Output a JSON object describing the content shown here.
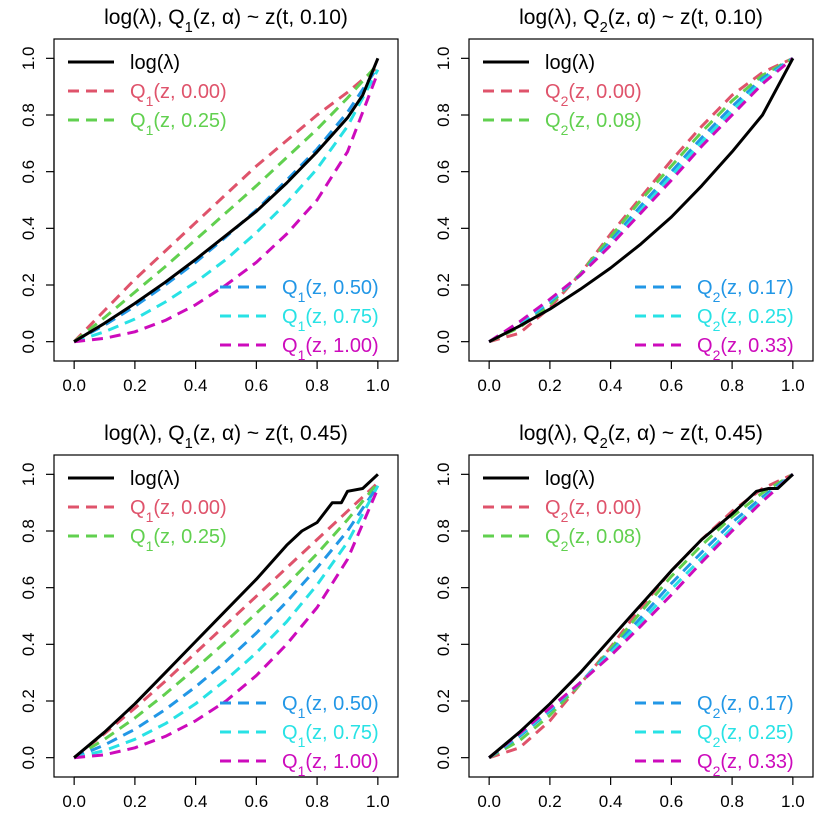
{
  "colors": {
    "black": "#000000",
    "red": "#DF536B",
    "green": "#61D04F",
    "blue": "#2297E6",
    "cyan": "#28E2E5",
    "magenta": "#CD0BBC"
  },
  "chart_data": [
    {
      "type": "line",
      "title": "log(λ), Q1(z, α) ~ z(t, 0.10)",
      "title_parts": {
        "pre": "log(λ), Q",
        "sub": "1",
        "post": "(z, α) ~ z(t, 0.10)"
      },
      "xlim": [
        0,
        1
      ],
      "ylim": [
        0,
        1
      ],
      "x_ticks": [
        "0.0",
        "0.2",
        "0.4",
        "0.6",
        "0.8",
        "1.0"
      ],
      "y_ticks": [
        "0.0",
        "0.2",
        "0.4",
        "0.6",
        "0.8",
        "1.0"
      ],
      "legend_top": [
        {
          "label": "log(λ)",
          "color": "black",
          "style": "solid"
        },
        {
          "label": "Q1(z, 0.00)",
          "pre": "Q",
          "sub": "1",
          "post": "(z, 0.00)",
          "color": "red",
          "style": "dashed"
        },
        {
          "label": "Q1(z, 0.25)",
          "pre": "Q",
          "sub": "1",
          "post": "(z, 0.25)",
          "color": "green",
          "style": "dashed"
        }
      ],
      "legend_bottom": [
        {
          "label": "Q1(z, 0.50)",
          "pre": "Q",
          "sub": "1",
          "post": "(z, 0.50)",
          "color": "blue",
          "style": "dashed"
        },
        {
          "label": "Q1(z, 0.75)",
          "pre": "Q",
          "sub": "1",
          "post": "(z, 0.75)",
          "color": "cyan",
          "style": "dashed"
        },
        {
          "label": "Q1(z, 1.00)",
          "pre": "Q",
          "sub": "1",
          "post": "(z, 1.00)",
          "color": "magenta",
          "style": "dashed"
        }
      ],
      "series": [
        {
          "color": "black",
          "style": "solid",
          "x": [
            0,
            0.1,
            0.2,
            0.3,
            0.4,
            0.5,
            0.6,
            0.7,
            0.8,
            0.9,
            0.95,
            1.0
          ],
          "y": [
            0,
            0.065,
            0.135,
            0.21,
            0.29,
            0.375,
            0.46,
            0.56,
            0.67,
            0.79,
            0.87,
            1.0
          ]
        },
        {
          "color": "red",
          "style": "dashed",
          "x": [
            0,
            0.1,
            0.2,
            0.3,
            0.4,
            0.5,
            0.6,
            0.7,
            0.8,
            0.9,
            1.0
          ],
          "y": [
            0,
            0.11,
            0.22,
            0.32,
            0.42,
            0.52,
            0.62,
            0.71,
            0.8,
            0.88,
            0.97
          ]
        },
        {
          "color": "green",
          "style": "dashed",
          "x": [
            0,
            0.1,
            0.2,
            0.3,
            0.4,
            0.5,
            0.6,
            0.7,
            0.8,
            0.9,
            1.0
          ],
          "y": [
            0,
            0.085,
            0.175,
            0.265,
            0.36,
            0.455,
            0.55,
            0.65,
            0.75,
            0.86,
            0.98
          ]
        },
        {
          "color": "blue",
          "style": "dashed",
          "x": [
            0,
            0.1,
            0.2,
            0.3,
            0.4,
            0.5,
            0.6,
            0.7,
            0.8,
            0.9,
            1.0
          ],
          "y": [
            0,
            0.058,
            0.125,
            0.2,
            0.28,
            0.37,
            0.465,
            0.57,
            0.68,
            0.81,
            0.97
          ]
        },
        {
          "color": "cyan",
          "style": "dashed",
          "x": [
            0,
            0.1,
            0.2,
            0.3,
            0.4,
            0.5,
            0.6,
            0.7,
            0.8,
            0.9,
            1.0
          ],
          "y": [
            0,
            0.035,
            0.08,
            0.14,
            0.21,
            0.29,
            0.385,
            0.49,
            0.61,
            0.76,
            0.96
          ]
        },
        {
          "color": "magenta",
          "style": "dashed",
          "x": [
            0,
            0.1,
            0.2,
            0.3,
            0.4,
            0.5,
            0.6,
            0.7,
            0.8,
            0.9,
            1.0
          ],
          "y": [
            0,
            0.012,
            0.035,
            0.075,
            0.13,
            0.2,
            0.28,
            0.38,
            0.5,
            0.67,
            0.95
          ]
        }
      ]
    },
    {
      "type": "line",
      "title": "log(λ), Q2(z, α) ~ z(t, 0.10)",
      "title_parts": {
        "pre": "log(λ), Q",
        "sub": "2",
        "post": "(z, α) ~ z(t, 0.10)"
      },
      "xlim": [
        0,
        1
      ],
      "ylim": [
        0,
        1
      ],
      "x_ticks": [
        "0.0",
        "0.2",
        "0.4",
        "0.6",
        "0.8",
        "1.0"
      ],
      "y_ticks": [
        "0.0",
        "0.2",
        "0.4",
        "0.6",
        "0.8",
        "1.0"
      ],
      "legend_top": [
        {
          "label": "log(λ)",
          "color": "black",
          "style": "solid"
        },
        {
          "label": "Q2(z, 0.00)",
          "pre": "Q",
          "sub": "2",
          "post": "(z, 0.00)",
          "color": "red",
          "style": "dashed"
        },
        {
          "label": "Q2(z, 0.08)",
          "pre": "Q",
          "sub": "2",
          "post": "(z, 0.08)",
          "color": "green",
          "style": "dashed"
        }
      ],
      "legend_bottom": [
        {
          "label": "Q2(z, 0.17)",
          "pre": "Q",
          "sub": "2",
          "post": "(z, 0.17)",
          "color": "blue",
          "style": "dashed"
        },
        {
          "label": "Q2(z, 0.25)",
          "pre": "Q",
          "sub": "2",
          "post": "(z, 0.25)",
          "color": "cyan",
          "style": "dashed"
        },
        {
          "label": "Q2(z, 0.33)",
          "pre": "Q",
          "sub": "2",
          "post": "(z, 0.33)",
          "color": "magenta",
          "style": "dashed"
        }
      ],
      "series": [
        {
          "color": "black",
          "style": "solid",
          "x": [
            0,
            0.1,
            0.2,
            0.3,
            0.4,
            0.5,
            0.6,
            0.7,
            0.8,
            0.9,
            0.95,
            1.0
          ],
          "y": [
            0,
            0.055,
            0.115,
            0.185,
            0.26,
            0.345,
            0.44,
            0.55,
            0.67,
            0.8,
            0.9,
            1.0
          ]
        },
        {
          "color": "red",
          "style": "dashed",
          "x": [
            0,
            0.1,
            0.2,
            0.3,
            0.4,
            0.5,
            0.6,
            0.7,
            0.8,
            0.9,
            1.0
          ],
          "y": [
            0,
            0.03,
            0.12,
            0.24,
            0.38,
            0.51,
            0.64,
            0.76,
            0.87,
            0.95,
            1.0
          ]
        },
        {
          "color": "green",
          "style": "dashed",
          "x": [
            0,
            0.1,
            0.2,
            0.3,
            0.4,
            0.5,
            0.6,
            0.7,
            0.8,
            0.9,
            1.0
          ],
          "y": [
            0,
            0.05,
            0.13,
            0.24,
            0.37,
            0.5,
            0.62,
            0.74,
            0.85,
            0.94,
            1.0
          ]
        },
        {
          "color": "blue",
          "style": "dashed",
          "x": [
            0,
            0.1,
            0.2,
            0.3,
            0.4,
            0.5,
            0.6,
            0.7,
            0.8,
            0.9,
            1.0
          ],
          "y": [
            0,
            0.06,
            0.14,
            0.235,
            0.355,
            0.48,
            0.6,
            0.72,
            0.83,
            0.93,
            1.0
          ]
        },
        {
          "color": "cyan",
          "style": "dashed",
          "x": [
            0,
            0.1,
            0.2,
            0.3,
            0.4,
            0.5,
            0.6,
            0.7,
            0.8,
            0.9,
            1.0
          ],
          "y": [
            0,
            0.065,
            0.145,
            0.235,
            0.345,
            0.465,
            0.585,
            0.705,
            0.815,
            0.92,
            1.0
          ]
        },
        {
          "color": "magenta",
          "style": "dashed",
          "x": [
            0,
            0.1,
            0.2,
            0.3,
            0.4,
            0.5,
            0.6,
            0.7,
            0.8,
            0.9,
            1.0
          ],
          "y": [
            0,
            0.07,
            0.15,
            0.235,
            0.34,
            0.455,
            0.57,
            0.69,
            0.8,
            0.91,
            1.0
          ]
        }
      ]
    },
    {
      "type": "line",
      "title": "log(λ), Q1(z, α) ~ z(t, 0.45)",
      "title_parts": {
        "pre": "log(λ), Q",
        "sub": "1",
        "post": "(z, α) ~ z(t, 0.45)"
      },
      "xlim": [
        0,
        1
      ],
      "ylim": [
        0,
        1
      ],
      "x_ticks": [
        "0.0",
        "0.2",
        "0.4",
        "0.6",
        "0.8",
        "1.0"
      ],
      "y_ticks": [
        "0.0",
        "0.2",
        "0.4",
        "0.6",
        "0.8",
        "1.0"
      ],
      "legend_top": [
        {
          "label": "log(λ)",
          "color": "black",
          "style": "solid"
        },
        {
          "label": "Q1(z, 0.00)",
          "pre": "Q",
          "sub": "1",
          "post": "(z, 0.00)",
          "color": "red",
          "style": "dashed"
        },
        {
          "label": "Q1(z, 0.25)",
          "pre": "Q",
          "sub": "1",
          "post": "(z, 0.25)",
          "color": "green",
          "style": "dashed"
        }
      ],
      "legend_bottom": [
        {
          "label": "Q1(z, 0.50)",
          "pre": "Q",
          "sub": "1",
          "post": "(z, 0.50)",
          "color": "blue",
          "style": "dashed"
        },
        {
          "label": "Q1(z, 0.75)",
          "pre": "Q",
          "sub": "1",
          "post": "(z, 0.75)",
          "color": "cyan",
          "style": "dashed"
        },
        {
          "label": "Q1(z, 1.00)",
          "pre": "Q",
          "sub": "1",
          "post": "(z, 1.00)",
          "color": "magenta",
          "style": "dashed"
        }
      ],
      "series": [
        {
          "color": "black",
          "style": "solid",
          "x": [
            0,
            0.1,
            0.2,
            0.3,
            0.4,
            0.5,
            0.6,
            0.7,
            0.75,
            0.8,
            0.85,
            0.88,
            0.9,
            0.95,
            1.0
          ],
          "y": [
            0,
            0.09,
            0.19,
            0.3,
            0.41,
            0.52,
            0.63,
            0.75,
            0.8,
            0.83,
            0.9,
            0.9,
            0.94,
            0.95,
            1.0
          ]
        },
        {
          "color": "red",
          "style": "dashed",
          "x": [
            0,
            0.1,
            0.2,
            0.3,
            0.4,
            0.5,
            0.6,
            0.7,
            0.8,
            0.9,
            1.0
          ],
          "y": [
            0,
            0.085,
            0.175,
            0.27,
            0.37,
            0.47,
            0.57,
            0.67,
            0.77,
            0.87,
            0.97
          ]
        },
        {
          "color": "green",
          "style": "dashed",
          "x": [
            0,
            0.1,
            0.2,
            0.3,
            0.4,
            0.5,
            0.6,
            0.7,
            0.8,
            0.9,
            1.0
          ],
          "y": [
            0,
            0.065,
            0.14,
            0.225,
            0.315,
            0.41,
            0.51,
            0.61,
            0.72,
            0.84,
            0.97
          ]
        },
        {
          "color": "blue",
          "style": "dashed",
          "x": [
            0,
            0.1,
            0.2,
            0.3,
            0.4,
            0.5,
            0.6,
            0.7,
            0.8,
            0.9,
            1.0
          ],
          "y": [
            0,
            0.045,
            0.1,
            0.17,
            0.25,
            0.34,
            0.44,
            0.55,
            0.67,
            0.8,
            0.96
          ]
        },
        {
          "color": "cyan",
          "style": "dashed",
          "x": [
            0,
            0.1,
            0.2,
            0.3,
            0.4,
            0.5,
            0.6,
            0.7,
            0.8,
            0.9,
            1.0
          ],
          "y": [
            0,
            0.025,
            0.065,
            0.12,
            0.19,
            0.275,
            0.37,
            0.48,
            0.61,
            0.76,
            0.96
          ]
        },
        {
          "color": "magenta",
          "style": "dashed",
          "x": [
            0,
            0.1,
            0.2,
            0.3,
            0.4,
            0.5,
            0.6,
            0.7,
            0.8,
            0.9,
            1.0
          ],
          "y": [
            0,
            0.01,
            0.035,
            0.075,
            0.13,
            0.2,
            0.29,
            0.4,
            0.53,
            0.7,
            0.95
          ]
        }
      ]
    },
    {
      "type": "line",
      "title": "log(λ), Q2(z, α) ~ z(t, 0.45)",
      "title_parts": {
        "pre": "log(λ), Q",
        "sub": "2",
        "post": "(z, α) ~ z(t, 0.45)"
      },
      "xlim": [
        0,
        1
      ],
      "ylim": [
        0,
        1
      ],
      "x_ticks": [
        "0.0",
        "0.2",
        "0.4",
        "0.6",
        "0.8",
        "1.0"
      ],
      "y_ticks": [
        "0.0",
        "0.2",
        "0.4",
        "0.6",
        "0.8",
        "1.0"
      ],
      "legend_top": [
        {
          "label": "log(λ)",
          "color": "black",
          "style": "solid"
        },
        {
          "label": "Q2(z, 0.00)",
          "pre": "Q",
          "sub": "2",
          "post": "(z, 0.00)",
          "color": "red",
          "style": "dashed"
        },
        {
          "label": "Q2(z, 0.08)",
          "pre": "Q",
          "sub": "2",
          "post": "(z, 0.08)",
          "color": "green",
          "style": "dashed"
        }
      ],
      "legend_bottom": [
        {
          "label": "Q2(z, 0.17)",
          "pre": "Q",
          "sub": "2",
          "post": "(z, 0.17)",
          "color": "blue",
          "style": "dashed"
        },
        {
          "label": "Q2(z, 0.25)",
          "pre": "Q",
          "sub": "2",
          "post": "(z, 0.25)",
          "color": "cyan",
          "style": "dashed"
        },
        {
          "label": "Q2(z, 0.33)",
          "pre": "Q",
          "sub": "2",
          "post": "(z, 0.33)",
          "color": "magenta",
          "style": "dashed"
        }
      ],
      "series": [
        {
          "color": "black",
          "style": "solid",
          "x": [
            0,
            0.1,
            0.2,
            0.3,
            0.4,
            0.5,
            0.6,
            0.7,
            0.8,
            0.85,
            0.88,
            0.92,
            0.95,
            1.0
          ],
          "y": [
            0,
            0.09,
            0.19,
            0.3,
            0.42,
            0.54,
            0.66,
            0.77,
            0.86,
            0.91,
            0.94,
            0.95,
            0.95,
            1.0
          ]
        },
        {
          "color": "red",
          "style": "dashed",
          "x": [
            0,
            0.1,
            0.2,
            0.3,
            0.4,
            0.5,
            0.6,
            0.7,
            0.8,
            0.9,
            1.0
          ],
          "y": [
            0,
            0.035,
            0.13,
            0.26,
            0.39,
            0.53,
            0.66,
            0.77,
            0.87,
            0.95,
            1.0
          ]
        },
        {
          "color": "green",
          "style": "dashed",
          "x": [
            0,
            0.1,
            0.2,
            0.3,
            0.4,
            0.5,
            0.6,
            0.7,
            0.8,
            0.9,
            1.0
          ],
          "y": [
            0,
            0.06,
            0.15,
            0.26,
            0.385,
            0.515,
            0.64,
            0.75,
            0.85,
            0.935,
            1.0
          ]
        },
        {
          "color": "blue",
          "style": "dashed",
          "x": [
            0,
            0.1,
            0.2,
            0.3,
            0.4,
            0.5,
            0.6,
            0.7,
            0.8,
            0.9,
            1.0
          ],
          "y": [
            0,
            0.075,
            0.165,
            0.265,
            0.375,
            0.495,
            0.615,
            0.725,
            0.83,
            0.92,
            1.0
          ]
        },
        {
          "color": "cyan",
          "style": "dashed",
          "x": [
            0,
            0.1,
            0.2,
            0.3,
            0.4,
            0.5,
            0.6,
            0.7,
            0.8,
            0.9,
            1.0
          ],
          "y": [
            0,
            0.08,
            0.17,
            0.265,
            0.37,
            0.48,
            0.595,
            0.705,
            0.81,
            0.91,
            1.0
          ]
        },
        {
          "color": "magenta",
          "style": "dashed",
          "x": [
            0,
            0.1,
            0.2,
            0.3,
            0.4,
            0.5,
            0.6,
            0.7,
            0.8,
            0.9,
            1.0
          ],
          "y": [
            0,
            0.085,
            0.175,
            0.265,
            0.36,
            0.465,
            0.575,
            0.69,
            0.8,
            0.905,
            1.0
          ]
        }
      ]
    }
  ]
}
